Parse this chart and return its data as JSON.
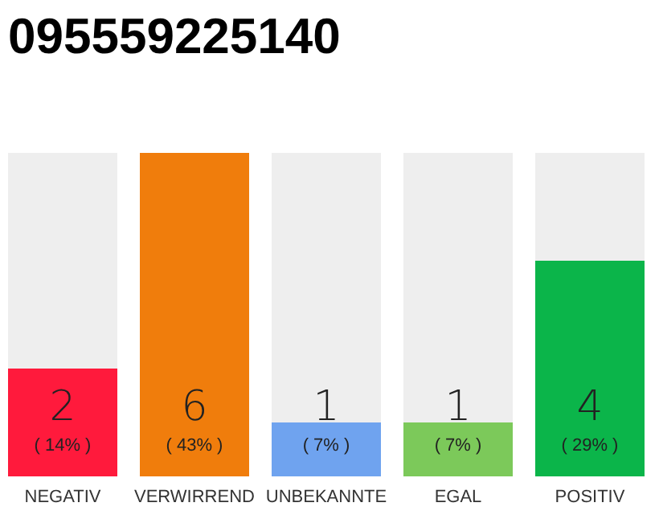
{
  "chart_data": {
    "type": "bar",
    "title": "095559225140",
    "categories": [
      "NEGATIV",
      "VERWIRREND",
      "UNBEKANNTE",
      "EGAL",
      "POSITIV"
    ],
    "values": [
      2,
      6,
      1,
      1,
      4
    ],
    "colors": [
      "#ff1a3c",
      "#f07d0c",
      "#6fa3ef",
      "#7cc95a",
      "#0bb54a"
    ],
    "ylim": [
      0,
      6
    ],
    "tick_labels": "x",
    "data_labels": true,
    "annotations": [
      "( 14% )",
      "( 43% )",
      "( 7% )",
      "( 7% )",
      "( 29% )"
    ]
  }
}
